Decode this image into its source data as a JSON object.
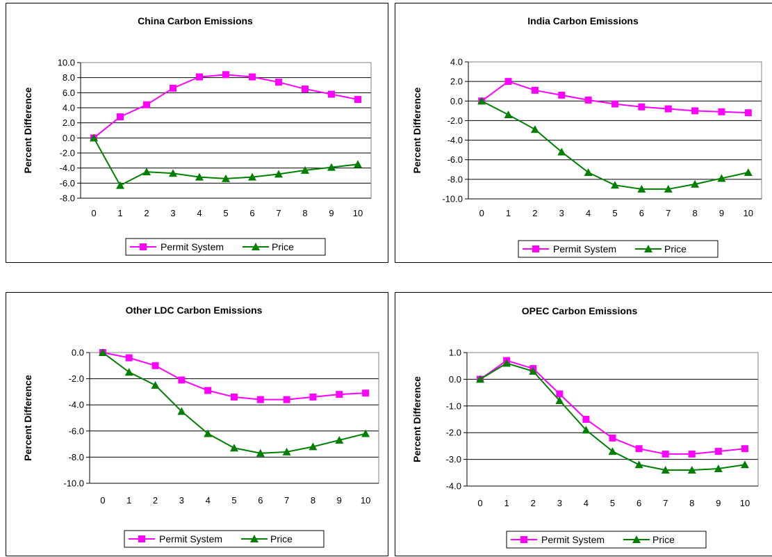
{
  "legend_names": [
    "Permit System",
    "Price"
  ],
  "colors": {
    "permit": "#FF00FF",
    "price": "#007F00"
  },
  "chart_data": [
    {
      "type": "line",
      "title": "China Carbon Emissions",
      "ylabel": "Percent Difference",
      "x": [
        0,
        1,
        2,
        3,
        4,
        5,
        6,
        7,
        8,
        9,
        10
      ],
      "ylim": [
        -8,
        10
      ],
      "ystep": 2,
      "yticks": [
        "-8.0",
        "-6.0",
        "-4.0",
        "-2.0",
        "0.0",
        "2.0",
        "4.0",
        "6.0",
        "8.0",
        "10.0"
      ],
      "grid": true,
      "legend": "bottom",
      "series": [
        {
          "name": "Permit System",
          "marker": "square",
          "values": [
            0,
            2.8,
            4.4,
            6.6,
            8.1,
            8.4,
            8.1,
            7.4,
            6.5,
            5.8,
            5.1
          ]
        },
        {
          "name": "Price",
          "marker": "triangle",
          "values": [
            0,
            -6.3,
            -4.5,
            -4.7,
            -5.2,
            -5.4,
            -5.2,
            -4.8,
            -4.3,
            -3.9,
            -3.5
          ]
        }
      ]
    },
    {
      "type": "line",
      "title": "India Carbon Emissions",
      "ylabel": "Percent Difference",
      "x": [
        0,
        1,
        2,
        3,
        4,
        5,
        6,
        7,
        8,
        9,
        10
      ],
      "ylim": [
        -10,
        4
      ],
      "ystep": 2,
      "yticks": [
        "-10.0",
        "-8.0",
        "-6.0",
        "-4.0",
        "-2.0",
        "0.0",
        "2.0",
        "4.0"
      ],
      "grid": true,
      "legend": "bottom",
      "series": [
        {
          "name": "Permit System",
          "marker": "square",
          "values": [
            0,
            2.0,
            1.1,
            0.6,
            0.1,
            -0.3,
            -0.6,
            -0.8,
            -1.0,
            -1.1,
            -1.2
          ]
        },
        {
          "name": "Price",
          "marker": "triangle",
          "values": [
            0,
            -1.4,
            -2.9,
            -5.2,
            -7.3,
            -8.6,
            -9.0,
            -9.0,
            -8.5,
            -7.9,
            -7.3
          ]
        }
      ]
    },
    {
      "type": "line",
      "title": "Other LDC Carbon Emissions",
      "ylabel": "Percent Difference",
      "x": [
        0,
        1,
        2,
        3,
        4,
        5,
        6,
        7,
        8,
        9,
        10
      ],
      "ylim": [
        -10,
        0
      ],
      "ystep": 2,
      "yticks": [
        "-10.0",
        "-8.0",
        "-6.0",
        "-4.0",
        "-2.0",
        "0.0"
      ],
      "grid": true,
      "legend": "bottom",
      "series": [
        {
          "name": "Permit System",
          "marker": "square",
          "values": [
            0,
            -0.4,
            -1.0,
            -2.1,
            -2.9,
            -3.4,
            -3.6,
            -3.6,
            -3.4,
            -3.2,
            -3.1
          ]
        },
        {
          "name": "Price",
          "marker": "triangle",
          "values": [
            0,
            -1.5,
            -2.5,
            -4.5,
            -6.2,
            -7.3,
            -7.7,
            -7.6,
            -7.2,
            -6.7,
            -6.2
          ]
        }
      ]
    },
    {
      "type": "line",
      "title": "OPEC Carbon Emissions",
      "ylabel": "Percent Difference",
      "x": [
        0,
        1,
        2,
        3,
        4,
        5,
        6,
        7,
        8,
        9,
        10
      ],
      "ylim": [
        -4,
        1
      ],
      "ystep": 1,
      "yticks": [
        "-4.0",
        "-3.0",
        "-2.0",
        "-1.0",
        "0.0",
        "1.0"
      ],
      "grid": true,
      "legend": "bottom",
      "series": [
        {
          "name": "Permit System",
          "marker": "square",
          "values": [
            0,
            0.7,
            0.4,
            -0.55,
            -1.5,
            -2.2,
            -2.6,
            -2.8,
            -2.8,
            -2.7,
            -2.6
          ]
        },
        {
          "name": "Price",
          "marker": "triangle",
          "values": [
            0,
            0.6,
            0.3,
            -0.8,
            -1.9,
            -2.7,
            -3.2,
            -3.4,
            -3.4,
            -3.35,
            -3.2
          ]
        }
      ]
    }
  ]
}
